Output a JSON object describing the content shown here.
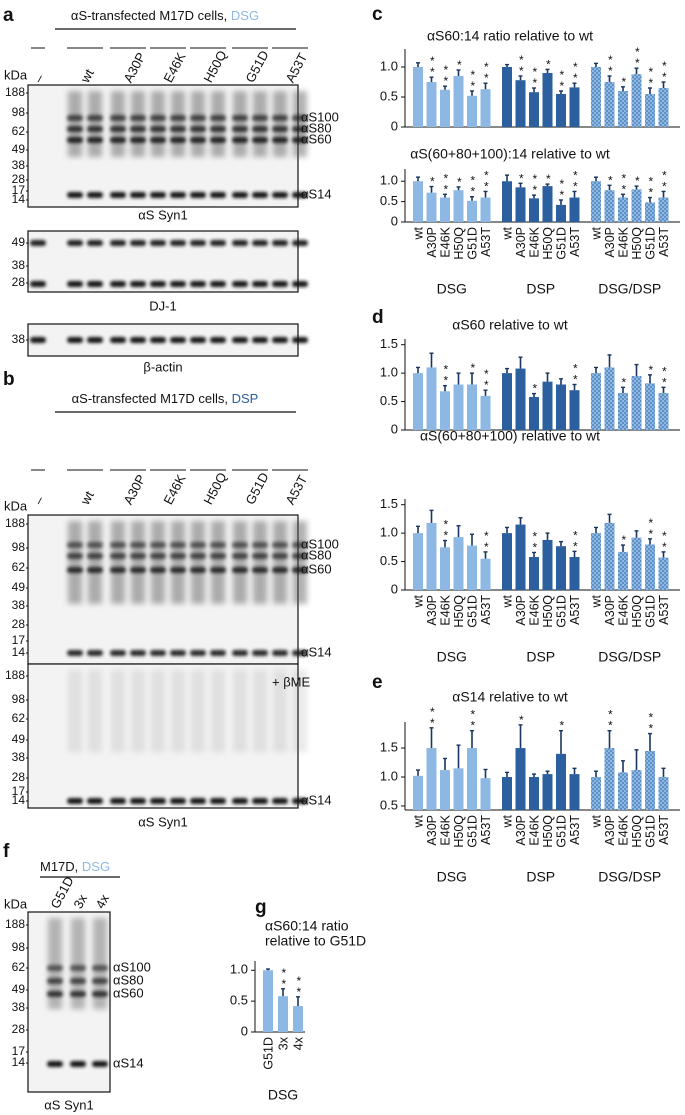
{
  "blots": [
    {
      "panel": "a",
      "header": "αS-transfected M17D cells, ",
      "condition": "DSG",
      "condition_color": "#8db8e4",
      "kda_unit": "kDa",
      "lanes": [
        "–",
        "wt",
        "A30P",
        "E46K",
        "H50Q",
        "G51D",
        "A53T"
      ],
      "membranes": [
        {
          "markers": [
            188,
            98,
            62,
            49,
            38,
            28,
            17,
            14
          ],
          "bands": [
            "αS100",
            "αS80",
            "αS60",
            "αS14"
          ],
          "label": "αS Syn1"
        },
        {
          "markers": [
            49,
            38,
            28
          ],
          "label": "DJ-1"
        },
        {
          "markers": [
            38
          ],
          "label": "β-actin"
        }
      ]
    },
    {
      "panel": "b",
      "header": "αS-transfected M17D cells, ",
      "condition": "DSP",
      "condition_color": "#2b5f9e",
      "kda_unit": "kDa",
      "lanes": [
        "–",
        "wt",
        "A30P",
        "E46K",
        "H50Q",
        "G51D",
        "A53T"
      ],
      "membranes": [
        {
          "markers": [
            188,
            98,
            62,
            49,
            38,
            28,
            17,
            14
          ],
          "bands": [
            "αS100",
            "αS80",
            "αS60",
            "αS14"
          ]
        },
        {
          "markers": [
            188,
            98,
            62,
            49,
            38,
            28,
            17,
            14
          ],
          "note": "+ βME",
          "bands": [
            "αS14"
          ],
          "label": "αS Syn1"
        }
      ]
    },
    {
      "panel": "f",
      "header": "M17D, ",
      "condition": "DSG",
      "condition_color": "#8db8e4",
      "kda_unit": "kDa",
      "lanes": [
        "G51D",
        "3x",
        "4x"
      ],
      "membranes": [
        {
          "markers": [
            188,
            98,
            62,
            49,
            38,
            28,
            17,
            14
          ],
          "bands": [
            "αS100",
            "αS80",
            "αS60",
            "αS14"
          ],
          "label": "αS Syn1"
        }
      ]
    }
  ],
  "chart_data": [
    {
      "type": "bar",
      "panel": "c",
      "title": "αS60:14 ratio relative to wt",
      "ylim": [
        0,
        1.3
      ],
      "yticks": [
        0,
        0.5,
        {
          "value": 1,
          "label": "1.0"
        }
      ],
      "series": [
        {
          "color": "#8db8e4",
          "values": [
            1.0,
            0.75,
            0.62,
            0.85,
            0.52,
            0.63
          ],
          "errors": [
            0.07,
            0.08,
            0.06,
            0.1,
            0.08,
            0.1
          ],
          "stars": [
            null,
            "**",
            "**",
            "*",
            "**",
            "**"
          ]
        },
        {
          "color": "#2b5f9e",
          "values": [
            1.0,
            0.78,
            0.58,
            0.9,
            0.55,
            0.66
          ],
          "errors": [
            0.04,
            0.07,
            0.07,
            0.06,
            0.05,
            0.07
          ],
          "stars": [
            null,
            "**",
            "**",
            "*",
            "**",
            "**"
          ]
        },
        {
          "color": "#8db8e4",
          "hatch_color": "#2b5f9e",
          "values": [
            1.0,
            0.75,
            0.6,
            0.88,
            0.55,
            0.65
          ],
          "errors": [
            0.06,
            0.1,
            0.07,
            0.1,
            0.1,
            0.1
          ],
          "stars": [
            null,
            "**",
            "*",
            "**",
            "**",
            "**"
          ]
        }
      ]
    },
    {
      "type": "bar",
      "title": "αS(60+80+100):14 relative to wt",
      "ylim": [
        0,
        1.3
      ],
      "yticks": [
        0,
        0.5,
        {
          "value": 1,
          "label": "1.0"
        }
      ],
      "categories": [
        "wt",
        "A30P",
        "E46K",
        "H50Q",
        "G51D",
        "A53T"
      ],
      "series": [
        {
          "name": "DSG",
          "color": "#8db8e4",
          "values": [
            1.0,
            0.72,
            0.6,
            0.78,
            0.52,
            0.6
          ],
          "errors": [
            0.1,
            0.15,
            0.08,
            0.08,
            0.1,
            0.15
          ],
          "stars": [
            null,
            "*",
            "**",
            "*",
            "**",
            "**"
          ]
        },
        {
          "name": "DSP",
          "color": "#2b5f9e",
          "values": [
            1.0,
            0.85,
            0.58,
            0.88,
            0.42,
            0.6
          ],
          "errors": [
            0.15,
            0.1,
            0.08,
            0.05,
            0.12,
            0.15
          ],
          "stars": [
            null,
            "*",
            "**",
            "*",
            "**",
            "**"
          ]
        },
        {
          "name": "DSG/DSP",
          "color": "#8db8e4",
          "hatch_color": "#2b5f9e",
          "values": [
            1.0,
            0.78,
            0.6,
            0.8,
            0.48,
            0.6
          ],
          "errors": [
            0.1,
            0.12,
            0.08,
            0.08,
            0.12,
            0.15
          ],
          "stars": [
            null,
            "*",
            "**",
            "*",
            "**",
            "**"
          ]
        }
      ]
    },
    {
      "type": "bar",
      "panel": "d",
      "title": "αS60 relative to wt",
      "ylim": [
        0,
        1.6
      ],
      "yticks": [
        0,
        0.5,
        {
          "value": 1,
          "label": "1.0"
        },
        1.5
      ],
      "series": [
        {
          "color": "#8db8e4",
          "values": [
            1.0,
            1.1,
            0.68,
            0.8,
            0.8,
            0.6
          ],
          "errors": [
            0.1,
            0.25,
            0.1,
            0.2,
            0.2,
            0.1
          ],
          "stars": [
            null,
            null,
            "**",
            null,
            "*",
            "**"
          ]
        },
        {
          "color": "#2b5f9e",
          "values": [
            1.0,
            1.08,
            0.58,
            0.85,
            0.8,
            0.7
          ],
          "errors": [
            0.08,
            0.2,
            0.06,
            0.15,
            0.1,
            0.1
          ],
          "stars": [
            null,
            null,
            "*",
            null,
            null,
            "**"
          ]
        },
        {
          "color": "#8db8e4",
          "hatch_color": "#2b5f9e",
          "values": [
            1.0,
            1.1,
            0.65,
            0.95,
            0.82,
            0.65
          ],
          "errors": [
            0.1,
            0.22,
            0.1,
            0.2,
            0.15,
            0.1
          ],
          "stars": [
            null,
            null,
            "*",
            null,
            "*",
            "**"
          ]
        }
      ]
    },
    {
      "type": "bar",
      "title": "αS(60+80+100) relative to wt",
      "ylim": [
        0,
        1.6
      ],
      "yticks": [
        0,
        0.5,
        {
          "value": 1,
          "label": "1.0"
        },
        1.5
      ],
      "categories": [
        "wt",
        "A30P",
        "E46K",
        "H50Q",
        "G51D",
        "A53T"
      ],
      "series": [
        {
          "name": "DSG",
          "color": "#8db8e4",
          "values": [
            1.0,
            1.18,
            0.75,
            0.93,
            0.78,
            0.55
          ],
          "errors": [
            0.12,
            0.22,
            0.12,
            0.2,
            0.2,
            0.12
          ],
          "stars": [
            null,
            null,
            "**",
            null,
            null,
            "**"
          ]
        },
        {
          "name": "DSP",
          "color": "#2b5f9e",
          "values": [
            1.0,
            1.15,
            0.58,
            0.88,
            0.77,
            0.58
          ],
          "errors": [
            0.1,
            0.12,
            0.08,
            0.12,
            0.08,
            0.1
          ],
          "stars": [
            null,
            null,
            "**",
            null,
            null,
            "**"
          ]
        },
        {
          "name": "DSG/DSP",
          "color": "#8db8e4",
          "hatch_color": "#2b5f9e",
          "values": [
            1.0,
            1.18,
            0.67,
            0.92,
            0.8,
            0.57
          ],
          "errors": [
            0.1,
            0.15,
            0.12,
            0.12,
            0.1,
            0.1
          ],
          "stars": [
            null,
            null,
            "*",
            null,
            "**",
            "**"
          ]
        }
      ]
    },
    {
      "type": "bar",
      "panel": "e",
      "title": "αS14 relative to wt",
      "ylim": [
        0.43,
        1.95
      ],
      "yticks": [
        0.5,
        {
          "value": 1,
          "label": "1.0"
        },
        1.5
      ],
      "categories": [
        "wt",
        "A30P",
        "E46K",
        "H50Q",
        "G51D",
        "A53T"
      ],
      "series": [
        {
          "name": "DSG",
          "color": "#8db8e4",
          "values": [
            1.02,
            1.5,
            1.12,
            1.15,
            1.5,
            0.98
          ],
          "errors": [
            0.1,
            0.35,
            0.2,
            0.4,
            0.3,
            0.15
          ],
          "stars": [
            null,
            "**",
            null,
            null,
            "**",
            null
          ]
        },
        {
          "name": "DSP",
          "color": "#2b5f9e",
          "values": [
            1.0,
            1.5,
            1.0,
            1.05,
            1.4,
            1.05
          ],
          "errors": [
            0.08,
            0.4,
            0.05,
            0.05,
            0.4,
            0.1
          ],
          "stars": [
            null,
            "*",
            null,
            null,
            "*",
            null
          ]
        },
        {
          "name": "DSG/DSP",
          "color": "#8db8e4",
          "hatch_color": "#2b5f9e",
          "values": [
            1.0,
            1.5,
            1.08,
            1.12,
            1.45,
            1.0
          ],
          "errors": [
            0.1,
            0.3,
            0.2,
            0.35,
            0.3,
            0.15
          ],
          "stars": [
            null,
            "**",
            null,
            null,
            "**",
            null
          ]
        }
      ]
    },
    {
      "type": "bar",
      "panel": "g",
      "title": [
        "αS60:14 ratio",
        "relative to G51D"
      ],
      "ylim": [
        0,
        1.15
      ],
      "yticks": [
        0,
        0.5,
        {
          "value": 1,
          "label": "1.0"
        }
      ],
      "categories": [
        "G51D",
        "3x",
        "4x"
      ],
      "series": [
        {
          "name": "DSG",
          "color": "#8db8e4",
          "values": [
            1.0,
            0.58,
            0.42
          ],
          "errors": [
            0.02,
            0.12,
            0.15
          ],
          "stars": [
            null,
            "**",
            "**"
          ]
        }
      ]
    }
  ]
}
